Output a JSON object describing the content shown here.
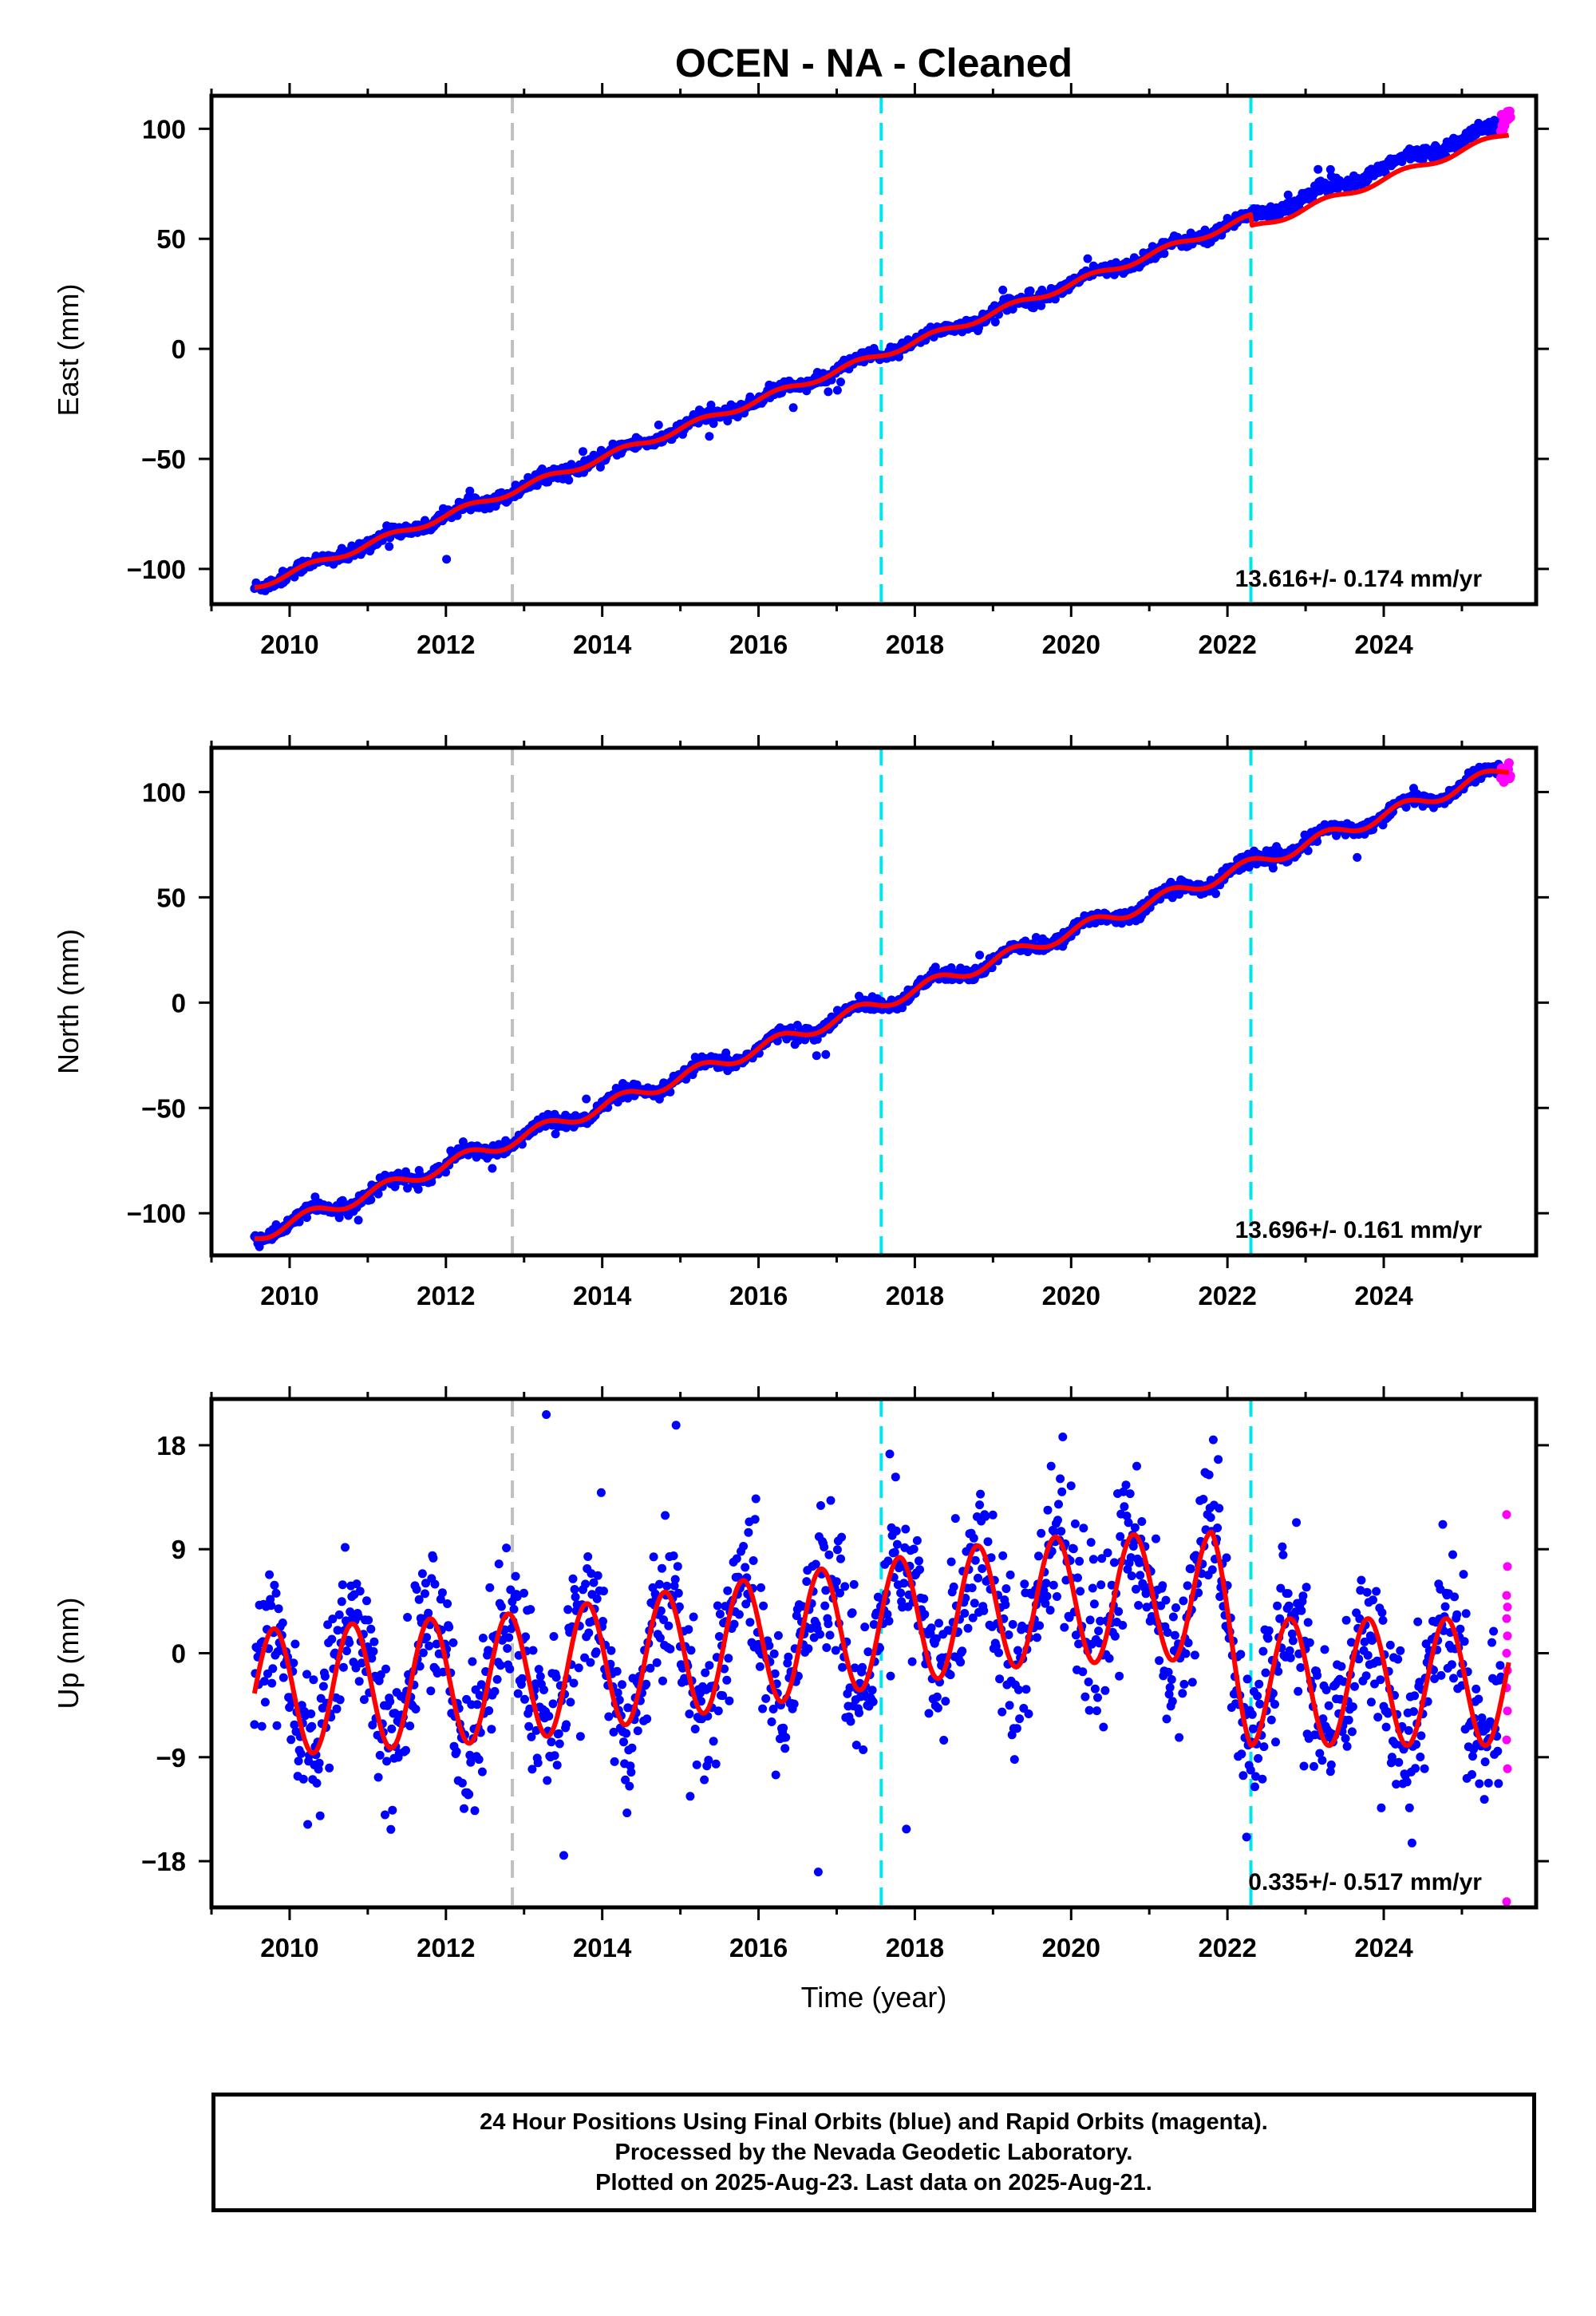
{
  "title": "OCEN  - NA - Cleaned",
  "colors": {
    "final_orbits": "#0000ff",
    "rapid_orbits": "#ff00ff",
    "model": "#ff0000",
    "equipment_change": "#c0c0c0",
    "earthquake": "#00e5ee"
  },
  "event_lines": [
    {
      "year": 2012.85,
      "kind": "equipment_change"
    },
    {
      "year": 2017.57,
      "kind": "earthquake"
    },
    {
      "year": 2022.3,
      "kind": "earthquake"
    }
  ],
  "chart_data": [
    {
      "type": "scatter",
      "panel": "east",
      "ylabel": "East (mm)",
      "xlim": [
        2009.0,
        2025.95
      ],
      "ylim": [
        -116,
        115
      ],
      "x_ticks": [
        2010,
        2012,
        2014,
        2016,
        2018,
        2020,
        2022,
        2024
      ],
      "y_ticks": [
        -100,
        -50,
        0,
        50,
        100
      ],
      "y_tick_labels": [
        "−100",
        "−50",
        "0",
        "50",
        "100"
      ],
      "rate_label": "13.616+/- 0.174 mm/yr",
      "series": [
        {
          "kind": "final_orbits",
          "x_start": 2009.55,
          "x_end": 2025.5,
          "y_start": -108,
          "y_end": 102,
          "annual_amp": 1.5,
          "noise": 1.5
        },
        {
          "kind": "rapid_orbits",
          "x_start": 2025.5,
          "x_end": 2025.62,
          "y_start": 101,
          "y_end": 106,
          "noise": 2.5
        },
        {
          "kind": "model",
          "x_start": 2009.55,
          "x_end": 2025.6,
          "y_start": -108,
          "y_end": 103,
          "annual_amp": 1.5,
          "offsets": [
            {
              "year": 2022.3,
              "value": -5
            }
          ]
        }
      ]
    },
    {
      "type": "scatter",
      "panel": "north",
      "ylabel": "North (mm)",
      "xlim": [
        2009.0,
        2025.95
      ],
      "ylim": [
        -120,
        121
      ],
      "x_ticks": [
        2010,
        2012,
        2014,
        2016,
        2018,
        2020,
        2022,
        2024
      ],
      "y_ticks": [
        -100,
        -50,
        0,
        50,
        100
      ],
      "y_tick_labels": [
        "−100",
        "−50",
        "0",
        "50",
        "100"
      ],
      "rate_label": "13.696+/- 0.161 mm/yr",
      "series": [
        {
          "kind": "final_orbits",
          "x_start": 2009.55,
          "x_end": 2025.5,
          "y_start": -111,
          "y_end": 110,
          "annual_amp": 3,
          "noise": 1.6
        },
        {
          "kind": "rapid_orbits",
          "x_start": 2025.5,
          "x_end": 2025.62,
          "y_start": 108,
          "y_end": 112,
          "noise": 4
        },
        {
          "kind": "model",
          "x_start": 2009.55,
          "x_end": 2025.6,
          "y_start": -111,
          "y_end": 111,
          "annual_amp": 3,
          "offsets": []
        }
      ]
    },
    {
      "type": "scatter",
      "panel": "up",
      "ylabel": "Up (mm)",
      "xlabel": "Time (year)",
      "xlim": [
        2009.0,
        2025.95
      ],
      "ylim": [
        -22,
        22
      ],
      "x_ticks": [
        2010,
        2012,
        2014,
        2016,
        2018,
        2020,
        2022,
        2024
      ],
      "y_ticks": [
        -18,
        -9,
        0,
        9,
        18
      ],
      "y_tick_labels": [
        "−18",
        "−9",
        "0",
        "9",
        "18"
      ],
      "rate_label": "0.335+/- 0.517 mm/yr",
      "series": [
        {
          "kind": "final_orbits",
          "x_start": 2009.55,
          "x_end": 2025.5,
          "noise": 3.2,
          "annual_amp": 5.5,
          "annual_phase": 0.55,
          "mean_levels": [
            [
              2009.5,
              -3.5
            ],
            [
              2013.0,
              -2
            ],
            [
              2017.5,
              2.5
            ],
            [
              2019.5,
              4.5
            ],
            [
              2021.8,
              5
            ],
            [
              2022.3,
              -2.5
            ],
            [
              2025.5,
              -2.5
            ]
          ]
        },
        {
          "kind": "rapid_orbits",
          "x_start": 2025.5,
          "x_end": 2025.62,
          "values": [
            12,
            7.5,
            5,
            4,
            3,
            1.5,
            0,
            -1.5,
            -3,
            -5,
            -7.5,
            -10,
            -21.5
          ]
        },
        {
          "kind": "model",
          "x_start": 2009.55,
          "x_end": 2025.6,
          "annual_amp": 5.5,
          "annual_phase": 0.55,
          "mean_levels": [
            [
              2009.5,
              -3.5
            ],
            [
              2013.0,
              -2
            ],
            [
              2017.5,
              2.5
            ],
            [
              2019.5,
              4.5
            ],
            [
              2021.8,
              5
            ],
            [
              2022.3,
              -2.5
            ],
            [
              2025.5,
              -2.5
            ]
          ]
        }
      ]
    }
  ],
  "footer": {
    "line1": "24 Hour Positions Using Final Orbits (blue) and Rapid Orbits (magenta).",
    "line2": "Processed by the Nevada Geodetic Laboratory.",
    "line3": "Plotted on 2025-Aug-23. Last data on 2025-Aug-21."
  }
}
